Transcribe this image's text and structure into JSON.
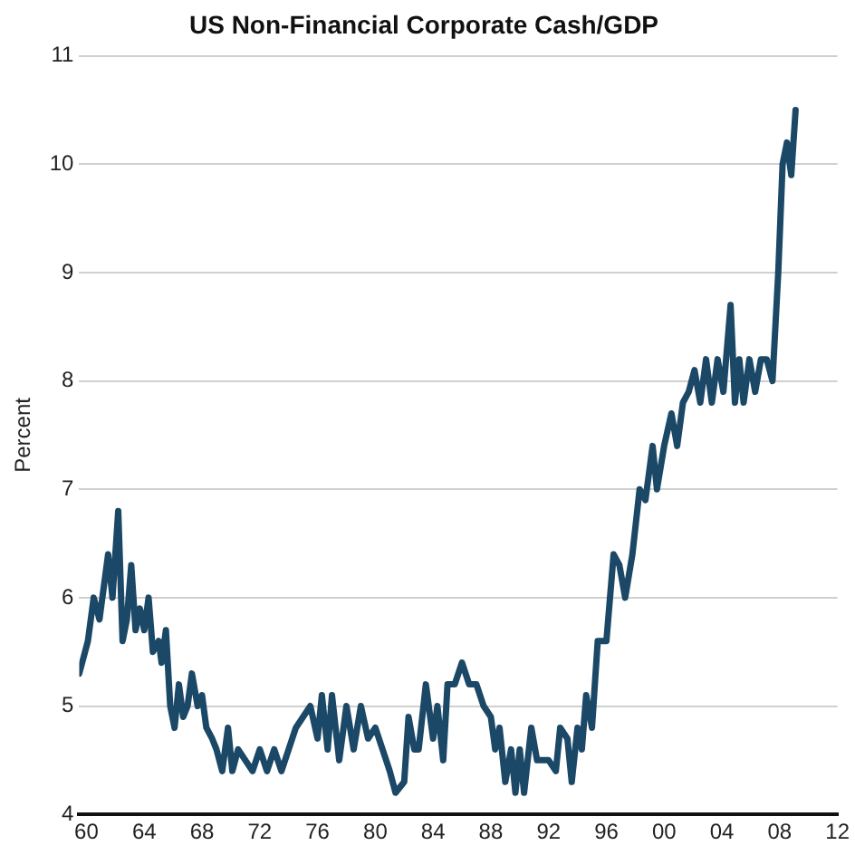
{
  "chart_data": {
    "type": "line",
    "title": "US Non-Financial Corporate Cash/GDP",
    "ylabel": "Percent",
    "x": [
      1959.5,
      1960.1,
      1960.5,
      1960.9,
      1961.2,
      1961.5,
      1961.8,
      1962.2,
      1962.5,
      1962.8,
      1963.1,
      1963.4,
      1963.7,
      1964,
      1964.3,
      1964.6,
      1965,
      1965.2,
      1965.5,
      1965.8,
      1966.1,
      1966.4,
      1966.7,
      1967,
      1967.3,
      1967.7,
      1968,
      1968.3,
      1968.7,
      1969,
      1969.4,
      1969.8,
      1970.1,
      1970.5,
      1971,
      1971.5,
      1972,
      1972.5,
      1973,
      1973.5,
      1974,
      1974.5,
      1975,
      1975.5,
      1976,
      1976.3,
      1976.7,
      1977,
      1977.5,
      1978,
      1978.5,
      1979,
      1979.5,
      1980,
      1980.5,
      1981,
      1981.4,
      1982,
      1982.3,
      1982.7,
      1983,
      1983.5,
      1984,
      1984.3,
      1984.7,
      1985,
      1985.5,
      1986,
      1986.5,
      1987,
      1987.5,
      1988,
      1988.3,
      1988.6,
      1989,
      1989.4,
      1989.7,
      1990,
      1990.3,
      1990.8,
      1991.2,
      1992,
      1992.5,
      1992.8,
      1993.3,
      1993.6,
      1994,
      1994.3,
      1994.6,
      1995,
      1995.4,
      1996,
      1996.5,
      1996.9,
      1997.3,
      1997.8,
      1998.3,
      1998.7,
      1999.2,
      1999.5,
      2000,
      2000.5,
      2000.9,
      2001.3,
      2001.7,
      2002.1,
      2002.5,
      2002.9,
      2003.3,
      2003.7,
      2004.1,
      2004.6,
      2004.9,
      2005.2,
      2005.5,
      2005.9,
      2006.3,
      2006.7,
      2007.1,
      2007.5,
      2007.9,
      2008.2,
      2008.5,
      2008.8,
      2009.1
    ],
    "series": [
      {
        "color": "#1b4866",
        "values": [
          5.3,
          5.6,
          6.0,
          5.8,
          6.1,
          6.4,
          6.0,
          6.8,
          5.6,
          5.8,
          6.3,
          5.7,
          5.9,
          5.7,
          6.0,
          5.5,
          5.6,
          5.4,
          5.7,
          5.0,
          4.8,
          5.2,
          4.9,
          5.0,
          5.3,
          5.0,
          5.1,
          4.8,
          4.7,
          4.6,
          4.4,
          4.8,
          4.4,
          4.6,
          4.5,
          4.4,
          4.6,
          4.4,
          4.6,
          4.4,
          4.6,
          4.8,
          4.9,
          5.0,
          4.7,
          5.1,
          4.6,
          5.1,
          4.5,
          5.0,
          4.6,
          5.0,
          4.7,
          4.8,
          4.6,
          4.4,
          4.2,
          4.3,
          4.9,
          4.6,
          4.6,
          5.2,
          4.7,
          5.0,
          4.5,
          5.2,
          5.2,
          5.4,
          5.2,
          5.2,
          5.0,
          4.9,
          4.6,
          4.8,
          4.3,
          4.6,
          4.2,
          4.6,
          4.2,
          4.8,
          4.5,
          4.5,
          4.4,
          4.8,
          4.7,
          4.3,
          4.8,
          4.6,
          5.1,
          4.8,
          5.6,
          5.6,
          6.4,
          6.3,
          6.0,
          6.4,
          7.0,
          6.9,
          7.4,
          7.0,
          7.4,
          7.7,
          7.4,
          7.8,
          7.9,
          8.1,
          7.8,
          8.2,
          7.8,
          8.2,
          7.9,
          8.7,
          7.8,
          8.2,
          7.8,
          8.2,
          7.9,
          8.2,
          8.2,
          8.0,
          9.0,
          10.0,
          10.2,
          9.9,
          10.5
        ]
      }
    ],
    "xlim": [
      1959.5,
      2012
    ],
    "xticks": [
      {
        "value": 1960,
        "label": "60"
      },
      {
        "value": 1964,
        "label": "64"
      },
      {
        "value": 1968,
        "label": "68"
      },
      {
        "value": 1972,
        "label": "72"
      },
      {
        "value": 1976,
        "label": "76"
      },
      {
        "value": 1980,
        "label": "80"
      },
      {
        "value": 1984,
        "label": "84"
      },
      {
        "value": 1988,
        "label": "88"
      },
      {
        "value": 1992,
        "label": "92"
      },
      {
        "value": 1996,
        "label": "96"
      },
      {
        "value": 2000,
        "label": "00"
      },
      {
        "value": 2004,
        "label": "04"
      },
      {
        "value": 2008,
        "label": "08"
      },
      {
        "value": 2012,
        "label": "12"
      }
    ],
    "ylim": [
      4,
      11
    ],
    "yticks": [
      4,
      5,
      6,
      7,
      8,
      9,
      10,
      11
    ],
    "grid": "y",
    "legend": false,
    "marker": "none",
    "line_style": "solid"
  }
}
